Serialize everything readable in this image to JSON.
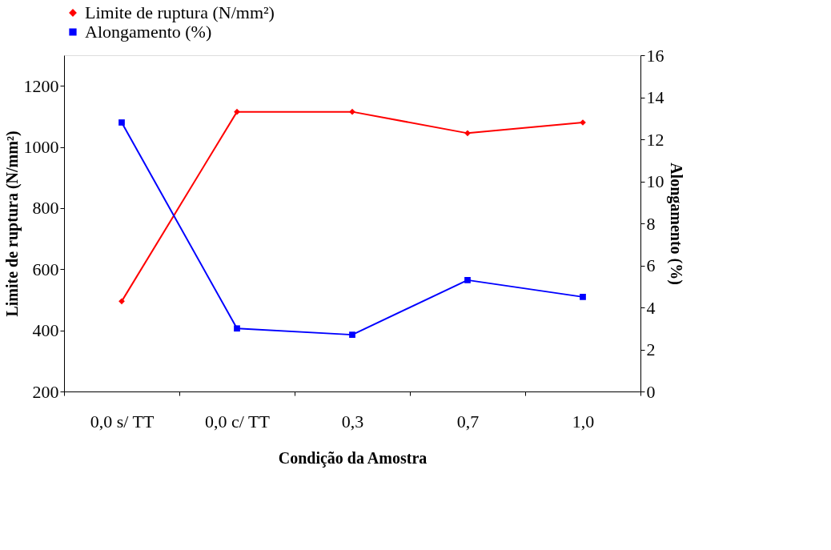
{
  "chart_data": {
    "type": "line",
    "xlabel": "Condição da Amostra",
    "ylabel": "Limite de ruptura (N/mm²)",
    "y2label": "Alongamento (%)",
    "categories": [
      "0,0 s/ TT",
      "0,0 c/ TT",
      "0,3",
      "0,7",
      "1,0"
    ],
    "series": [
      {
        "name": "Limite de ruptura (N/mm²)",
        "color": "#ff0000",
        "marker": "diamond",
        "values": [
          495,
          1115,
          1115,
          1045,
          1080
        ]
      },
      {
        "name": "Alongamento (%)",
        "color": "#0000ff",
        "marker": "square",
        "axis": "y2",
        "values": [
          12.8,
          3.0,
          2.7,
          5.3,
          4.5
        ]
      }
    ],
    "ylim": [
      200,
      1300
    ],
    "yticks": [
      200,
      400,
      600,
      800,
      1000,
      1200
    ],
    "y2lim": [
      0,
      16
    ],
    "y2ticks": [
      0,
      2,
      4,
      6,
      8,
      10,
      12,
      14,
      16
    ],
    "legend": "top",
    "grid": false,
    "line_style": "solid"
  }
}
